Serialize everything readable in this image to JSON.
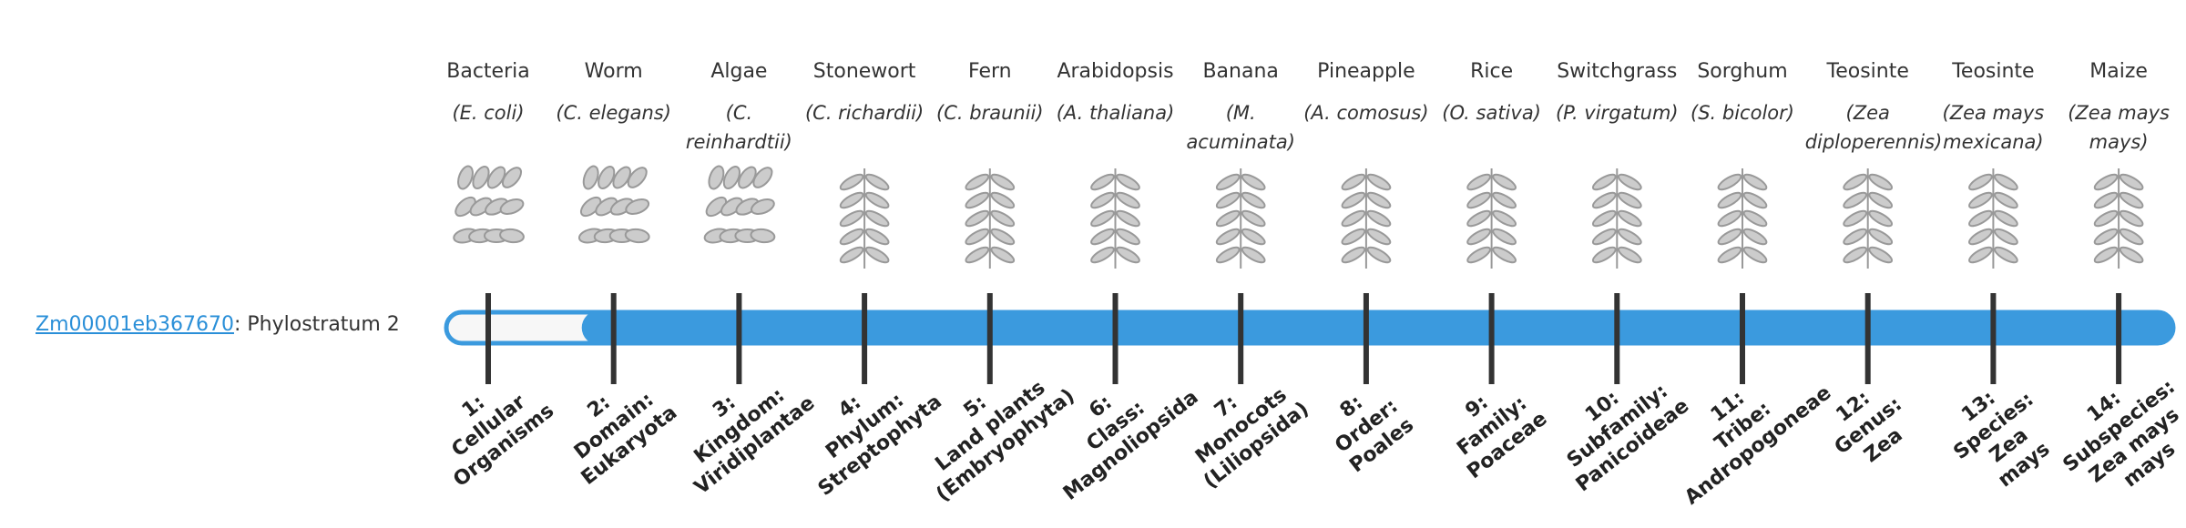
{
  "gene": {
    "id": "Zm00001eb367670",
    "label_suffix": ": Phylostratum 2",
    "phylostratum": 2
  },
  "strata": [
    {
      "common": "Bacteria",
      "species": "(E. coli)",
      "rank_lines": [
        "1:",
        "Cellular",
        "Organisms"
      ]
    },
    {
      "common": "Worm",
      "species": "(C. elegans)",
      "rank_lines": [
        "2:",
        "Domain:",
        "Eukaryota"
      ]
    },
    {
      "common": "Algae",
      "species": "(C. reinhardtii)",
      "rank_lines": [
        "3:",
        "Kingdom:",
        "Viridiplantae"
      ]
    },
    {
      "common": "Stonewort",
      "species": "(C. richardii)",
      "rank_lines": [
        "4:",
        "Phylum:",
        "Streptophyta"
      ]
    },
    {
      "common": "Fern",
      "species": "(C. braunii)",
      "rank_lines": [
        "5:",
        "Land plants",
        "(Embryophyta)"
      ]
    },
    {
      "common": "Arabidopsis",
      "species": "(A. thaliana)",
      "rank_lines": [
        "6:",
        "Class:",
        "Magnoliopsida"
      ]
    },
    {
      "common": "Banana",
      "species": "(M. acuminata)",
      "rank_lines": [
        "7:",
        "Monocots",
        "(Liliopsida)"
      ]
    },
    {
      "common": "Pineapple",
      "species": "(A. comosus)",
      "rank_lines": [
        "8:",
        "Order:",
        "Poales"
      ]
    },
    {
      "common": "Rice",
      "species": "(O. sativa)",
      "rank_lines": [
        "9:",
        "Family:",
        "Poaceae"
      ]
    },
    {
      "common": "Switchgrass",
      "species": "(P. virgatum)",
      "rank_lines": [
        "10:",
        "Subfamily:",
        "Panicoideae"
      ]
    },
    {
      "common": "Sorghum",
      "species": "(S. bicolor)",
      "rank_lines": [
        "11:",
        "Tribe:",
        "Andropogoneae"
      ]
    },
    {
      "common": "Teosinte",
      "species": "(Zea diploperennis)",
      "rank_lines": [
        "12:",
        "Genus:",
        "Zea"
      ]
    },
    {
      "common": "Teosinte",
      "species": "(Zea mays mexicana)",
      "rank_lines": [
        "13:",
        "Species:",
        "Zea",
        "mays"
      ]
    },
    {
      "common": "Maize",
      "species": "(Zea mays mays)",
      "rank_lines": [
        "14:",
        "Subspecies:",
        "Zea mays",
        "mays"
      ]
    }
  ]
}
